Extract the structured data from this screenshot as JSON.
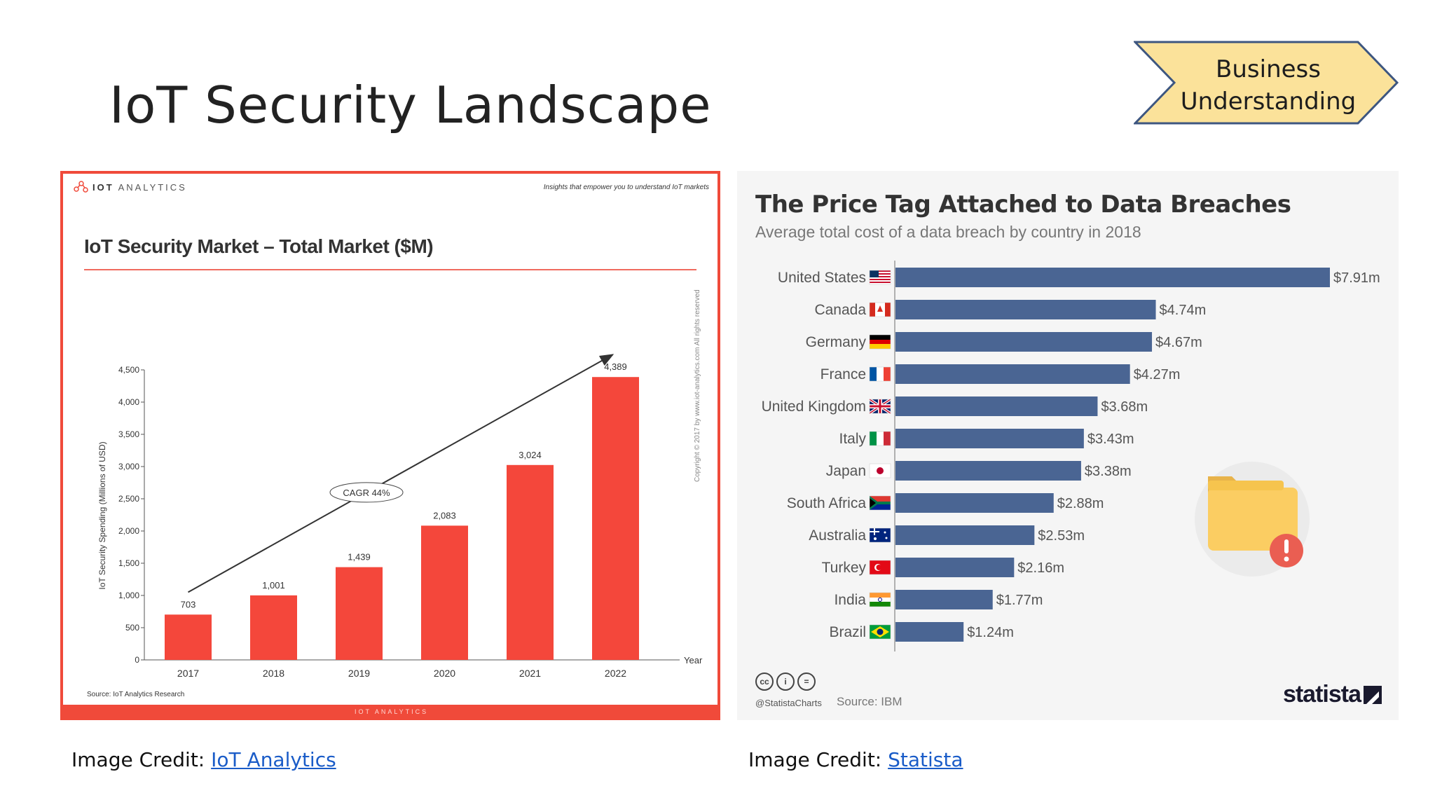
{
  "slide": {
    "title": "IoT Security Landscape",
    "badge": {
      "line1": "Business",
      "line2": "Understanding"
    }
  },
  "left_panel": {
    "logo_text_bold": "IOT",
    "logo_text": "ANALYTICS",
    "tagline": "Insights that empower you to understand IoT markets",
    "source": "Source: IoT Analytics Research",
    "copyright": "Copyright © 2017 by www.iot-analytics.com All rights reserved",
    "footer_logo": "IOT ANALYTICS"
  },
  "right_panel": {
    "cc_icons": [
      "cc",
      "i",
      "="
    ],
    "handle": "@StatistaCharts",
    "source": "Source: IBM",
    "logo": "statista"
  },
  "credits": {
    "left_prefix": "Image Credit: ",
    "left_link": "IoT Analytics",
    "right_prefix": "Image Credit: ",
    "right_link": "Statista"
  },
  "chart_data": [
    {
      "type": "bar",
      "title": "IoT Security Market – Total Market ($M)",
      "xlabel": "Year",
      "ylabel": "IoT Security Spending (Millions of USD)",
      "categories": [
        "2017",
        "2018",
        "2019",
        "2020",
        "2021",
        "2022"
      ],
      "values": [
        703,
        1001,
        1439,
        2083,
        3024,
        4389
      ],
      "value_labels": [
        "703",
        "1,001",
        "1,439",
        "2,083",
        "3,024",
        "4,389"
      ],
      "ylim": [
        0,
        4500
      ],
      "yticks": [
        0,
        500,
        1000,
        1500,
        2000,
        2500,
        3000,
        3500,
        4000,
        4500
      ],
      "ytick_labels": [
        "0",
        "500",
        "1,000",
        "1,500",
        "2,000",
        "2,500",
        "3,000",
        "3,500",
        "4,000",
        "4,500"
      ],
      "annotation": "CAGR 44%",
      "colors": {
        "bar": "#f4473b"
      }
    },
    {
      "type": "bar",
      "orientation": "horizontal",
      "title": "The Price Tag Attached to Data Breaches",
      "subtitle": "Average total cost of a data breach by country in 2018",
      "categories": [
        "United States",
        "Canada",
        "Germany",
        "France",
        "United Kingdom",
        "Italy",
        "Japan",
        "South Africa",
        "Australia",
        "Turkey",
        "India",
        "Brazil"
      ],
      "values": [
        7.91,
        4.74,
        4.67,
        4.27,
        3.68,
        3.43,
        3.38,
        2.88,
        2.53,
        2.16,
        1.77,
        1.24
      ],
      "value_labels": [
        "$7.91m",
        "$4.74m",
        "$4.67m",
        "$4.27m",
        "$3.68m",
        "$3.43m",
        "$3.38m",
        "$2.88m",
        "$2.53m",
        "$2.16m",
        "$1.77m",
        "$1.24m"
      ],
      "flags": [
        "us",
        "ca",
        "de",
        "fr",
        "gb",
        "it",
        "jp",
        "za",
        "au",
        "tr",
        "in",
        "br"
      ],
      "colors": {
        "bar": "#4a6593"
      }
    }
  ]
}
